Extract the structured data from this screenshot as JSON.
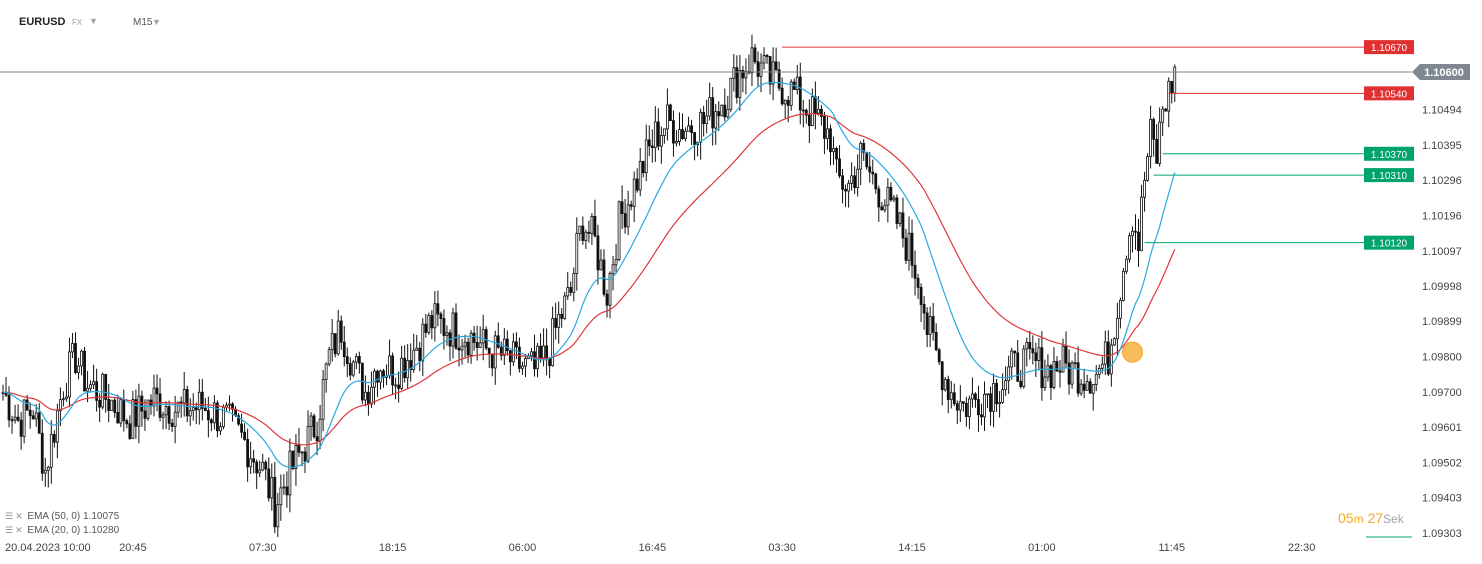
{
  "header": {
    "symbol": "EURUSD",
    "market": "FX",
    "timeframe": "M15"
  },
  "legend": {
    "ema50_label": "EMA (50, 0) 1.10075",
    "ema20_label": "EMA (20, 0) 1.10280"
  },
  "countdown": {
    "minutes": "05",
    "minutes_unit": "m",
    "seconds": "27",
    "seconds_unit": "Sek"
  },
  "colors": {
    "ema50": "#e0363a",
    "ema20": "#29a9e1",
    "candle": "#111111",
    "level_red": "#e03030",
    "level_green": "#00a36c",
    "current_price": "#7f8790",
    "marker": "#f5a623"
  },
  "chart_data": {
    "type": "candlestick",
    "title": "",
    "xlabel": "",
    "ylabel": "",
    "ylim": [
      1.0925,
      1.1078
    ],
    "y_ticks": [
      "1.10494",
      "1.10395",
      "1.10296",
      "1.10196",
      "1.10097",
      "1.09998",
      "1.09899",
      "1.09800",
      "1.09700",
      "1.09601",
      "1.09502",
      "1.09403",
      "1.09303"
    ],
    "x_ticks": [
      {
        "label": "20.04.2023  10:00",
        "index": 0
      },
      {
        "label": "20:45",
        "index": 43
      },
      {
        "label": "07:30",
        "index": 86
      },
      {
        "label": "18:15",
        "index": 129
      },
      {
        "label": "06:00",
        "index": 172
      },
      {
        "label": "16:45",
        "index": 215
      },
      {
        "label": "03:30",
        "index": 258
      },
      {
        "label": "14:15",
        "index": 301
      },
      {
        "label": "01:00",
        "index": 344
      },
      {
        "label": "11:45",
        "index": 387
      },
      {
        "label": "22:30",
        "index": 430
      }
    ],
    "close_path": [
      [
        0,
        1.097
      ],
      [
        5,
        1.0962
      ],
      [
        10,
        1.0965
      ],
      [
        14,
        1.0948
      ],
      [
        17,
        1.096
      ],
      [
        20,
        1.0972
      ],
      [
        24,
        1.098
      ],
      [
        28,
        1.0972
      ],
      [
        35,
        1.0968
      ],
      [
        42,
        1.0962
      ],
      [
        50,
        1.0968
      ],
      [
        58,
        1.0965
      ],
      [
        66,
        1.0966
      ],
      [
        74,
        1.0962
      ],
      [
        80,
        1.0956
      ],
      [
        86,
        1.0948
      ],
      [
        90,
        1.0938
      ],
      [
        94,
        1.0946
      ],
      [
        100,
        1.0955
      ],
      [
        104,
        1.0962
      ],
      [
        108,
        1.098
      ],
      [
        112,
        1.0988
      ],
      [
        116,
        1.0978
      ],
      [
        120,
        1.097
      ],
      [
        124,
        1.0978
      ],
      [
        130,
        1.0976
      ],
      [
        136,
        1.0982
      ],
      [
        142,
        1.099
      ],
      [
        148,
        1.0988
      ],
      [
        154,
        1.0986
      ],
      [
        160,
        1.0982
      ],
      [
        166,
        1.098
      ],
      [
        170,
        1.0978
      ],
      [
        176,
        1.0976
      ],
      [
        180,
        1.098
      ],
      [
        184,
        1.099
      ],
      [
        188,
        1.0998
      ],
      [
        190,
        1.101
      ],
      [
        192,
        1.1018
      ],
      [
        196,
        1.1012
      ],
      [
        200,
        1.0998
      ],
      [
        204,
        1.1018
      ],
      [
        208,
        1.1026
      ],
      [
        212,
        1.1034
      ],
      [
        216,
        1.1042
      ],
      [
        220,
        1.1046
      ],
      [
        224,
        1.1044
      ],
      [
        228,
        1.1045
      ],
      [
        232,
        1.1046
      ],
      [
        236,
        1.105
      ],
      [
        240,
        1.1054
      ],
      [
        244,
        1.106
      ],
      [
        248,
        1.1064
      ],
      [
        250,
        1.1062
      ],
      [
        254,
        1.1058
      ],
      [
        258,
        1.1056
      ],
      [
        262,
        1.1054
      ],
      [
        266,
        1.105
      ],
      [
        270,
        1.1046
      ],
      [
        274,
        1.1042
      ],
      [
        276,
        1.103
      ],
      [
        280,
        1.1028
      ],
      [
        284,
        1.1036
      ],
      [
        288,
        1.103
      ],
      [
        292,
        1.1024
      ],
      [
        296,
        1.1018
      ],
      [
        300,
        1.101
      ],
      [
        304,
        1.1
      ],
      [
        306,
        1.0988
      ],
      [
        310,
        1.0978
      ],
      [
        314,
        1.097
      ],
      [
        318,
        1.0966
      ],
      [
        322,
        1.0968
      ],
      [
        326,
        1.097
      ],
      [
        330,
        1.0972
      ],
      [
        334,
        1.0976
      ],
      [
        338,
        1.0978
      ],
      [
        342,
        1.0978
      ],
      [
        346,
        1.0976
      ],
      [
        350,
        1.0978
      ],
      [
        354,
        1.0976
      ],
      [
        358,
        1.0975
      ],
      [
        362,
        1.0975
      ],
      [
        366,
        1.098
      ],
      [
        368,
        1.099
      ],
      [
        370,
        1.1
      ],
      [
        372,
        1.1012
      ],
      [
        374,
        1.102
      ],
      [
        376,
        1.1012
      ],
      [
        378,
        1.103
      ],
      [
        380,
        1.1042
      ],
      [
        382,
        1.1036
      ],
      [
        384,
        1.105
      ],
      [
        386,
        1.1054
      ],
      [
        388,
        1.106
      ]
    ],
    "series": [
      {
        "name": "EMA (50, 0) 1.10075",
        "period": 50,
        "last": 1.10075
      },
      {
        "name": "EMA (20, 0) 1.10280",
        "period": 20,
        "last": 1.1028
      }
    ],
    "current_price": {
      "label": "1.10600",
      "value": 1.106
    },
    "levels": [
      {
        "label": "1.10670",
        "value": 1.1067,
        "start_index": 258,
        "kind": "red"
      },
      {
        "label": "1.10540",
        "value": 1.1054,
        "start_index": 386,
        "kind": "red"
      },
      {
        "label": "1.10370",
        "value": 1.1037,
        "start_index": 384,
        "kind": "green"
      },
      {
        "label": "1.10310",
        "value": 1.1031,
        "start_index": 381,
        "kind": "green"
      },
      {
        "label": "1.10120",
        "value": 1.1012,
        "start_index": 378,
        "kind": "green"
      }
    ],
    "marker_index": 374,
    "marker_value": 1.09812,
    "grid": false,
    "legend_position": "bottom-left"
  }
}
